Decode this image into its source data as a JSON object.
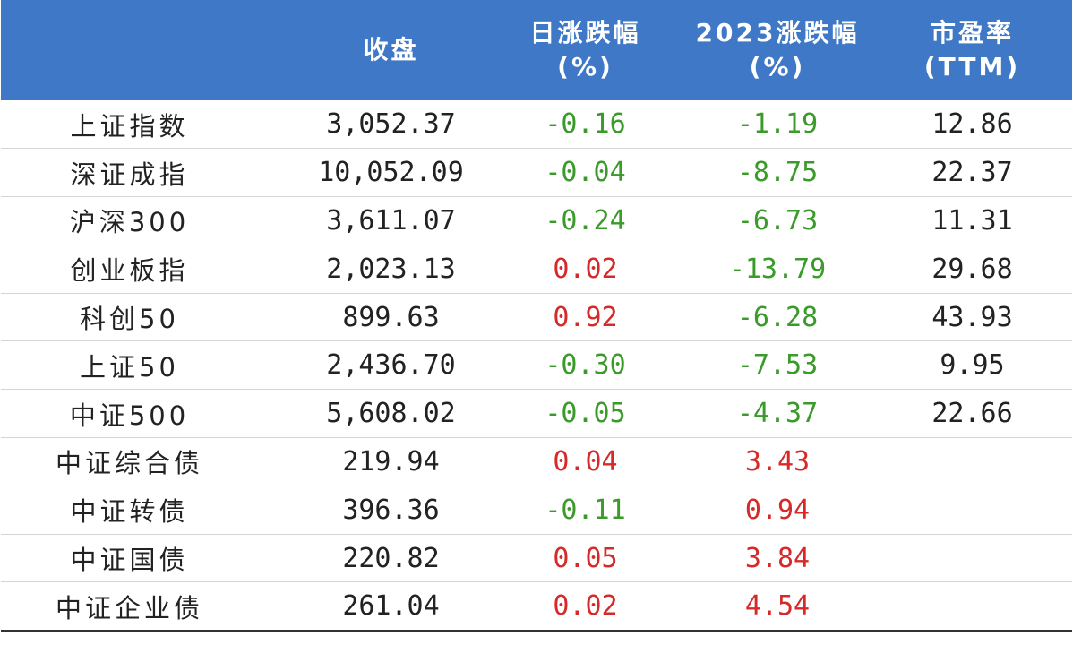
{
  "chart_data": {
    "type": "table",
    "columns": [
      "",
      "收盘",
      "日涨跌幅\n(%)",
      "2023涨跌幅\n(%)",
      "市盈率\n(TTM)"
    ],
    "header": {
      "close": "收盘",
      "daily_line1": "日涨跌幅",
      "daily_line2": "(%)",
      "ytd_line1": "2023涨跌幅",
      "ytd_line2": "(%)",
      "pe_line1": "市盈率",
      "pe_line2": "(TTM)"
    },
    "rows": [
      {
        "name": "上证指数",
        "close": "3,052.37",
        "daily": "-0.16",
        "ytd": "-1.19",
        "pe": "12.86"
      },
      {
        "name": "深证成指",
        "close": "10,052.09",
        "daily": "-0.04",
        "ytd": "-8.75",
        "pe": "22.37"
      },
      {
        "name": "沪深300",
        "close": "3,611.07",
        "daily": "-0.24",
        "ytd": "-6.73",
        "pe": "11.31"
      },
      {
        "name": "创业板指",
        "close": "2,023.13",
        "daily": "0.02",
        "ytd": "-13.79",
        "pe": "29.68"
      },
      {
        "name": "科创50",
        "close": "899.63",
        "daily": "0.92",
        "ytd": "-6.28",
        "pe": "43.93"
      },
      {
        "name": "上证50",
        "close": "2,436.70",
        "daily": "-0.30",
        "ytd": "-7.53",
        "pe": "9.95"
      },
      {
        "name": "中证500",
        "close": "5,608.02",
        "daily": "-0.05",
        "ytd": "-4.37",
        "pe": "22.66"
      },
      {
        "name": "中证综合债",
        "close": "219.94",
        "daily": "0.04",
        "ytd": "3.43",
        "pe": ""
      },
      {
        "name": "中证转债",
        "close": "396.36",
        "daily": "-0.11",
        "ytd": "0.94",
        "pe": ""
      },
      {
        "name": "中证国债",
        "close": "220.82",
        "daily": "0.05",
        "ytd": "3.84",
        "pe": ""
      },
      {
        "name": "中证企业债",
        "close": "261.04",
        "daily": "0.02",
        "ytd": "4.54",
        "pe": ""
      }
    ]
  },
  "colors": {
    "header_bg": "#3e78c6",
    "header_text": "#ffffff",
    "positive": "#d62a2a",
    "negative": "#3a9a2a",
    "neutral": "#222222"
  }
}
